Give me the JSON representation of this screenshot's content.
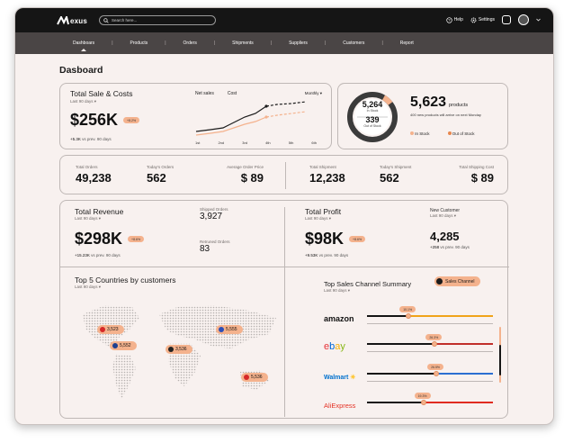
{
  "app": {
    "logo_text": "exus"
  },
  "search": {
    "placeholder": "Search here..."
  },
  "topbar": {
    "help": "Help",
    "settings": "Settings"
  },
  "nav": [
    "Dashboars",
    "Products",
    "Orders",
    "Shipments",
    "Suppliers",
    "Customers",
    "Report"
  ],
  "page_title": "Dasboard",
  "sales": {
    "title": "Total Sale & Costs",
    "period": "Last 90 days",
    "value": "$256K",
    "badge": "+8.2%",
    "delta": "+5.3K",
    "delta_text": "vs prev. 90 days",
    "legend_net": "Net sales",
    "legend_cost": "Cost",
    "dropdown": "Monthly",
    "x_labels": [
      "1st",
      "2nd",
      "3rd",
      "4th",
      "5th",
      "6th"
    ]
  },
  "products": {
    "in_stock_value": "5,264",
    "in_stock_label": "In Stock",
    "out_value": "339",
    "out_label": "Out of Stock",
    "total": "5,623",
    "total_unit": "products",
    "note": "400 new products will arrive on next Monday",
    "legend_in": "In Stock",
    "legend_out": "Out of Stock",
    "in_stock_share": 0.94
  },
  "stats": [
    {
      "label": "Total Orders",
      "value": "49,238"
    },
    {
      "label": "Today's Orders",
      "value": "562"
    },
    {
      "label": "Average Order Price",
      "value": "$ 89"
    },
    {
      "label": "Total Shipment",
      "value": "12,238"
    },
    {
      "label": "Today's Shipment",
      "value": "562"
    },
    {
      "label": "Total Shipping Cost",
      "value": "$ 89"
    }
  ],
  "revenue": {
    "title": "Total Revenue",
    "period": "Last 90 days",
    "value": "$298K",
    "badge": "+8.6%",
    "delta": "+15.23K",
    "delta_text": "vs prev. 90 days",
    "shipped_label": "Shipped Orders",
    "shipped_value": "3,927",
    "returned_label": "Retruned Orders",
    "returned_value": "83"
  },
  "profit": {
    "title": "Total Profit",
    "period": "Last 90 days",
    "value": "$98K",
    "badge": "+8.6%",
    "delta": "+9.53K",
    "delta_text": "vs prev. 90 days",
    "newcust_label": "New Customer",
    "newcust_period": "Last 90 days",
    "newcust_value": "4,285",
    "newcust_delta": "+258",
    "newcust_delta_text": "vs prev. 90 days"
  },
  "countries": {
    "title": "Top 5 Countries by customers",
    "period": "Last 90 days",
    "items": [
      {
        "flag": "canada-flag",
        "value": "3,523"
      },
      {
        "flag": "usa-flag",
        "value": "5,552"
      },
      {
        "flag": "germany-flag",
        "value": "3,536"
      },
      {
        "flag": "russia-flag",
        "value": "5,555"
      },
      {
        "flag": "poland-flag",
        "value": "5,536"
      }
    ]
  },
  "channels": {
    "title": "Top Sales Channel Summary",
    "period": "Last 90 days",
    "button": "Sales Channel",
    "items": [
      {
        "name": "amazon",
        "pct": "10.1%",
        "share": 0.1,
        "color": "#f0a31a"
      },
      {
        "name": "ebay",
        "pct": "26.3%",
        "share": 0.26,
        "color": "#c12f2b"
      },
      {
        "name": "Walmart",
        "pct": "26.5%",
        "share": 0.27,
        "color": "#2b6fd1"
      },
      {
        "name": "AliExpress",
        "pct": "19.3%",
        "share": 0.19,
        "color": "#e02b20"
      }
    ]
  },
  "colors": {
    "accent": "#f4b28d",
    "dark": "#151515",
    "nav": "#4a4545",
    "bg": "#f8f1ef"
  }
}
